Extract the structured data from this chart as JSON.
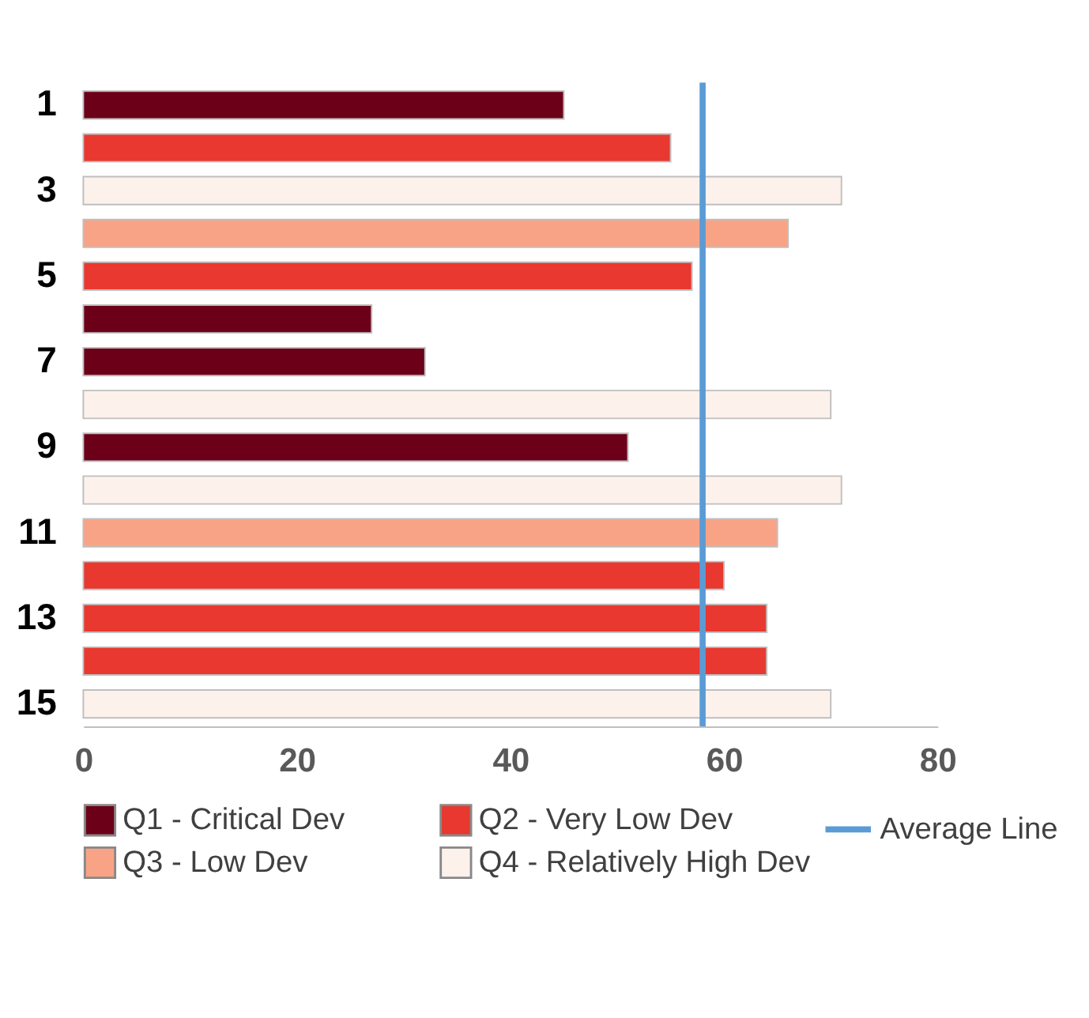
{
  "chart_data": {
    "type": "bar",
    "orientation": "horizontal",
    "categories": [
      "1",
      null,
      "3",
      null,
      "5",
      null,
      "7",
      null,
      "9",
      null,
      "11",
      null,
      "13",
      null,
      "15"
    ],
    "series": [
      {
        "name": "Q1 - Critical Dev",
        "color": "#6b0018",
        "values": [
          45,
          null,
          null,
          null,
          null,
          27,
          32,
          null,
          51,
          null,
          null,
          null,
          null,
          null,
          null
        ]
      },
      {
        "name": "Q2 - Very Low Dev",
        "color": "#e8382f",
        "values": [
          null,
          55,
          null,
          null,
          57,
          null,
          null,
          null,
          null,
          null,
          null,
          60,
          64,
          64,
          null
        ]
      },
      {
        "name": "Q3 - Low Dev",
        "color": "#f9a386",
        "values": [
          null,
          null,
          null,
          66,
          null,
          null,
          null,
          null,
          null,
          null,
          65,
          null,
          null,
          null,
          null
        ]
      },
      {
        "name": "Q4 - Relatively High Dev",
        "color": "#fdf1eb",
        "values": [
          null,
          null,
          71,
          null,
          null,
          null,
          null,
          70,
          null,
          71,
          null,
          null,
          null,
          null,
          70
        ]
      }
    ],
    "xlim": [
      0,
      80
    ],
    "xticks": [
      0,
      20,
      40,
      60,
      80
    ],
    "grid": false,
    "legend": "bottom",
    "ref_lines": [
      {
        "axis": "x",
        "value": 58,
        "label": "Average Line",
        "color": "#5b9bd5"
      }
    ]
  }
}
